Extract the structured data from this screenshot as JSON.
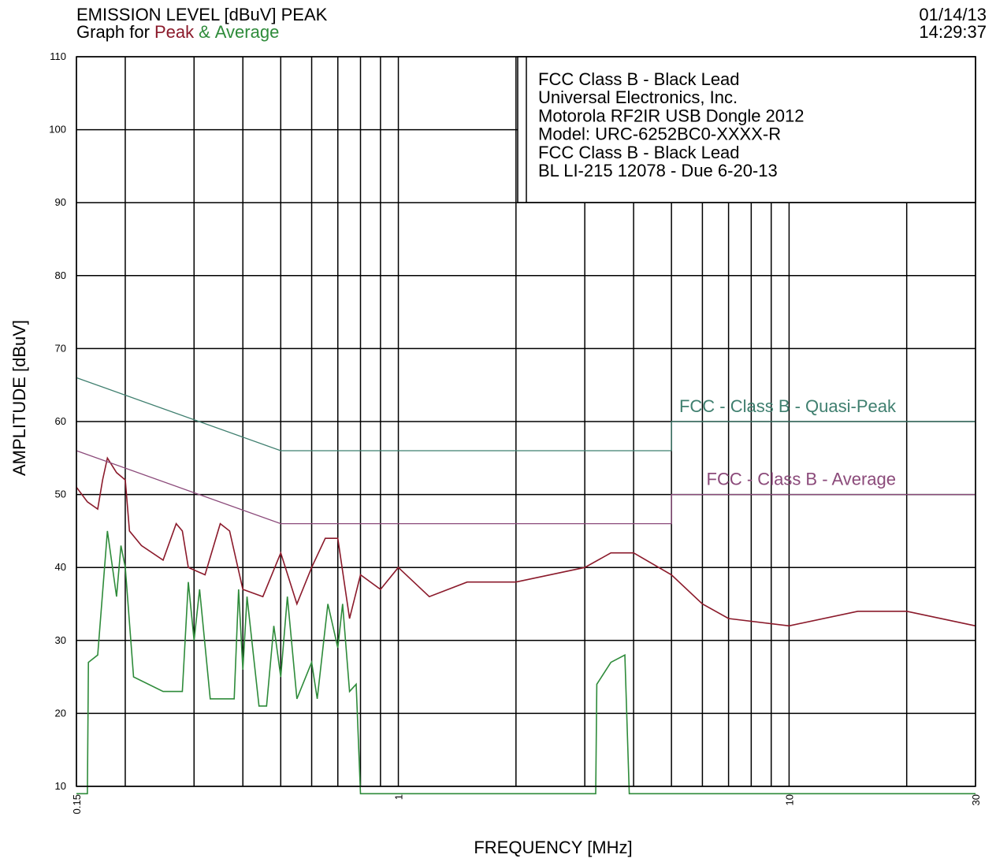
{
  "chart_data": {
    "type": "line",
    "title": "EMISSION LEVEL [dBuV] PEAK",
    "legend_prefix": "Graph for",
    "legend_separator": "&",
    "date": "01/14/13",
    "time": "14:29:37",
    "annotation_lines": [
      "FCC Class B - Black Lead",
      "Universal Electronics, Inc.",
      "Motorola RF2IR USB Dongle 2012",
      "Model: URC-6252BC0-XXXX-R",
      "FCC Class B - Black Lead",
      "BL LI-215 12078 - Due 6-20-13"
    ],
    "x_label": "FREQUENCY [MHz]",
    "y_label": "AMPLITUDE [dBuV]",
    "x_log": true,
    "grid": true,
    "xlim": [
      0.15,
      30
    ],
    "ylim": [
      10,
      110
    ],
    "xticks": [
      0.15,
      1,
      10,
      30
    ],
    "x_minor_ticks": [
      0.2,
      0.3,
      0.4,
      0.5,
      0.6,
      0.7,
      0.8,
      0.9,
      2,
      3,
      4,
      5,
      6,
      7,
      8,
      9,
      20
    ],
    "yticks": [
      10,
      20,
      30,
      40,
      50,
      60,
      70,
      80,
      90,
      100,
      110
    ],
    "series": [
      {
        "name": "Peak",
        "color": "#8b1a2b",
        "legend": true,
        "x": [
          0.15,
          0.16,
          0.17,
          0.175,
          0.18,
          0.19,
          0.2,
          0.205,
          0.22,
          0.25,
          0.27,
          0.28,
          0.29,
          0.32,
          0.35,
          0.37,
          0.4,
          0.45,
          0.5,
          0.55,
          0.6,
          0.65,
          0.7,
          0.75,
          0.8,
          0.9,
          1.0,
          1.2,
          1.5,
          2,
          3,
          3.5,
          4,
          5,
          6,
          7,
          10,
          15,
          20,
          30
        ],
        "values": [
          51,
          49,
          48,
          52,
          55,
          53,
          52,
          45,
          43,
          41,
          46,
          45,
          40,
          39,
          46,
          45,
          37,
          36,
          42,
          35,
          40,
          44,
          44,
          33,
          39,
          37,
          40,
          36,
          38,
          38,
          40,
          42,
          42,
          39,
          35,
          33,
          32,
          34,
          34,
          32
        ]
      },
      {
        "name": "Average",
        "color": "#2e8b3a",
        "legend": true,
        "x": [
          0.15,
          0.16,
          0.161,
          0.17,
          0.18,
          0.19,
          0.195,
          0.2,
          0.21,
          0.25,
          0.28,
          0.29,
          0.3,
          0.31,
          0.33,
          0.38,
          0.39,
          0.4,
          0.41,
          0.44,
          0.46,
          0.48,
          0.5,
          0.52,
          0.55,
          0.6,
          0.62,
          0.66,
          0.7,
          0.72,
          0.75,
          0.78,
          0.8,
          3.2,
          3.22,
          3.5,
          3.8,
          3.9,
          30
        ],
        "values": [
          9,
          9,
          27,
          28,
          45,
          36,
          43,
          40,
          25,
          23,
          23,
          38,
          30,
          37,
          22,
          22,
          37,
          26,
          36,
          21,
          21,
          32,
          25,
          36,
          22,
          27,
          22,
          35,
          29,
          35,
          23,
          24,
          9,
          9,
          24,
          27,
          28,
          9,
          9
        ]
      },
      {
        "name": "FCC - Class B - Quasi-Peak",
        "color": "#3f7f6f",
        "legend": false,
        "x": [
          0.15,
          0.5,
          0.5,
          5,
          5,
          30
        ],
        "values": [
          66,
          56,
          56,
          56,
          60,
          60
        ]
      },
      {
        "name": "FCC - Class B - Average",
        "color": "#8b4a7a",
        "legend": false,
        "x": [
          0.15,
          0.5,
          0.5,
          5,
          5,
          30
        ],
        "values": [
          56,
          46,
          46,
          46,
          50,
          50
        ]
      }
    ]
  }
}
